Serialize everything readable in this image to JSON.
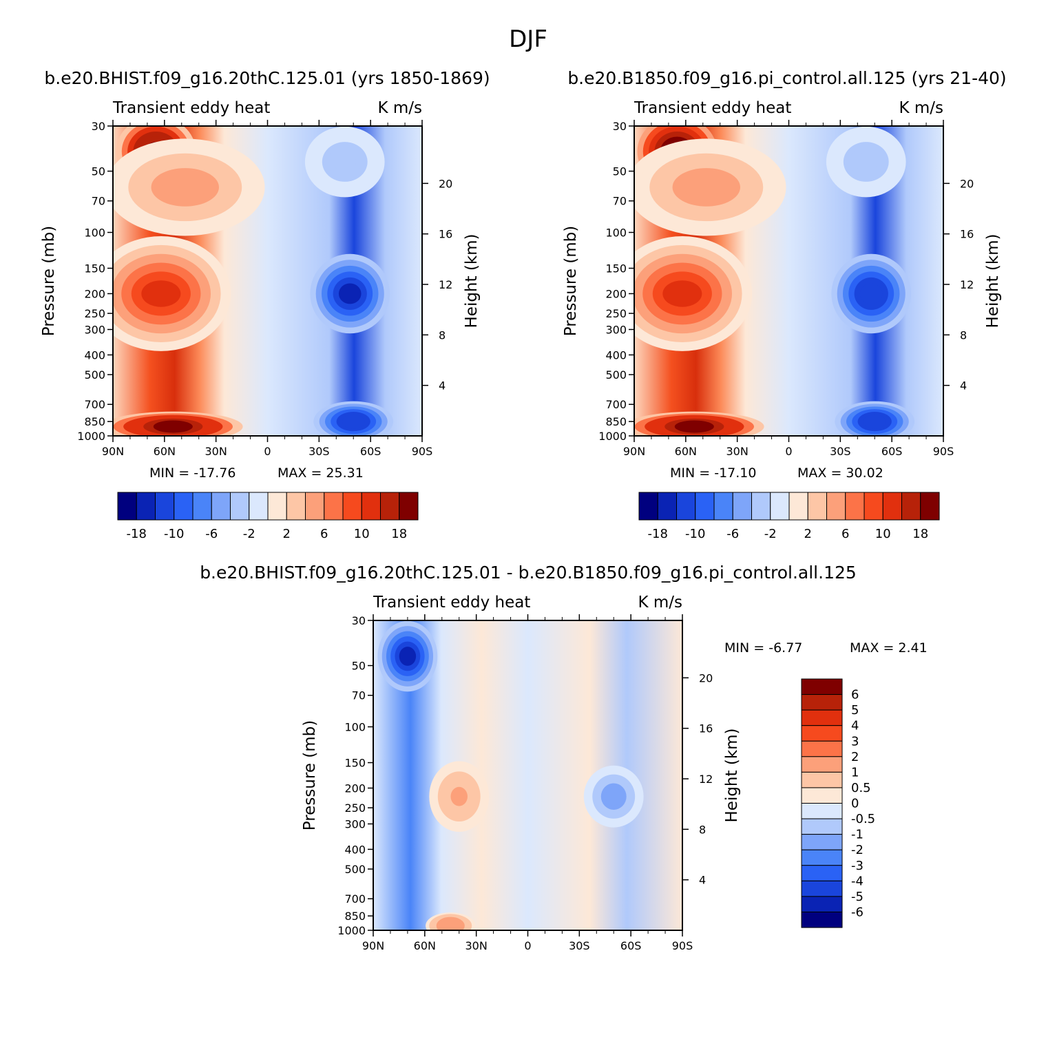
{
  "figure": {
    "title": "DJF",
    "colors": {
      "diverging": [
        "#00007f",
        "#0a23b4",
        "#1a45dc",
        "#2a62f5",
        "#4a84f8",
        "#7ea5f9",
        "#b0c9fb",
        "#dbe8fd",
        "#fde8d7",
        "#fdc6a6",
        "#fca07a",
        "#fc7348",
        "#f64a1e",
        "#e1300e",
        "#b72209",
        "#7f0000"
      ]
    },
    "diff_colors": [
      "#00007f",
      "#0a23b4",
      "#1a45dc",
      "#2a62f5",
      "#4a84f8",
      "#7ea5f9",
      "#b0c9fb",
      "#dbe8fd",
      "#fde8d7",
      "#fdc6a6",
      "#fca07a",
      "#fc7348",
      "#f64a1e",
      "#e1300e",
      "#b72209",
      "#7f0000"
    ]
  },
  "chart_data": [
    {
      "type": "heatmap",
      "id": "panel1",
      "title": "b.e20.BHIST.f09_g16.20thC.125.01 (yrs 1850-1869)",
      "left_string": "Transient eddy heat",
      "right_string": "K m/s",
      "xlabel": "",
      "ylabel": "Pressure (mb)",
      "ylabel_right": "Height (km)",
      "x_ticks": [
        "90N",
        "60N",
        "30N",
        "0",
        "30S",
        "60S",
        "90S"
      ],
      "x_range": [
        90,
        -90
      ],
      "y_ticks": [
        30,
        50,
        70,
        100,
        150,
        200,
        250,
        300,
        400,
        500,
        700,
        850,
        1000
      ],
      "y_range": [
        30,
        1000
      ],
      "height_ticks": [
        4,
        8,
        12,
        16,
        20
      ],
      "min_label": "MIN = -17.76",
      "max_label": "MAX = 25.31",
      "min": -17.76,
      "max": 25.31,
      "colorbar_labels": [
        "-18",
        "-10",
        "-6",
        "-2",
        "2",
        "6",
        "10",
        "18"
      ],
      "features": [
        {
          "lat": 65,
          "p": 40,
          "value": 25,
          "wlat": 8,
          "wlogp": 0.35
        },
        {
          "lat": 62,
          "p": 200,
          "value": 12,
          "wlat": 14,
          "wlogp": 0.6
        },
        {
          "lat": 55,
          "p": 900,
          "value": 24,
          "wlat": 14,
          "wlogp": 0.12
        },
        {
          "lat": 48,
          "p": 60,
          "value": 6,
          "wlat": 16,
          "wlogp": 0.5
        },
        {
          "lat": -48,
          "p": 200,
          "value": -17,
          "wlat": 8,
          "wlogp": 0.4
        },
        {
          "lat": -50,
          "p": 850,
          "value": -16,
          "wlat": 8,
          "wlogp": 0.18
        },
        {
          "lat": -45,
          "p": 45,
          "value": -4,
          "wlat": 8,
          "wlogp": 0.35
        }
      ]
    },
    {
      "type": "heatmap",
      "id": "panel2",
      "title": "b.e20.B1850.f09_g16.pi_control.all.125 (yrs 21-40)",
      "left_string": "Transient eddy heat",
      "right_string": "K m/s",
      "xlabel": "",
      "ylabel": "Pressure (mb)",
      "ylabel_right": "Height (km)",
      "x_ticks": [
        "90N",
        "60N",
        "30N",
        "0",
        "30S",
        "60S",
        "90S"
      ],
      "x_range": [
        90,
        -90
      ],
      "y_ticks": [
        30,
        50,
        70,
        100,
        150,
        200,
        250,
        300,
        400,
        500,
        700,
        850,
        1000
      ],
      "y_range": [
        30,
        1000
      ],
      "height_ticks": [
        4,
        8,
        12,
        16,
        20
      ],
      "min_label": "MIN = -17.10",
      "max_label": "MAX = 30.02",
      "min": -17.1,
      "max": 30.02,
      "colorbar_labels": [
        "-18",
        "-10",
        "-6",
        "-2",
        "2",
        "6",
        "10",
        "18"
      ],
      "features": [
        {
          "lat": 65,
          "p": 40,
          "value": 29,
          "wlat": 8,
          "wlogp": 0.35
        },
        {
          "lat": 62,
          "p": 200,
          "value": 12,
          "wlat": 14,
          "wlogp": 0.6
        },
        {
          "lat": 55,
          "p": 900,
          "value": 24,
          "wlat": 14,
          "wlogp": 0.12
        },
        {
          "lat": 48,
          "p": 60,
          "value": 6,
          "wlat": 16,
          "wlogp": 0.5
        },
        {
          "lat": -48,
          "p": 200,
          "value": -16,
          "wlat": 8,
          "wlogp": 0.4
        },
        {
          "lat": -50,
          "p": 850,
          "value": -16,
          "wlat": 8,
          "wlogp": 0.18
        },
        {
          "lat": -45,
          "p": 45,
          "value": -4,
          "wlat": 8,
          "wlogp": 0.35
        }
      ]
    },
    {
      "type": "heatmap",
      "id": "panel3",
      "title": "b.e20.BHIST.f09_g16.20thC.125.01 - b.e20.B1850.f09_g16.pi_control.all.125",
      "left_string": "Transient eddy heat",
      "right_string": "K m/s",
      "xlabel": "",
      "ylabel": "Pressure (mb)",
      "ylabel_right": "Height (km)",
      "x_ticks": [
        "90N",
        "60N",
        "30N",
        "0",
        "30S",
        "60S",
        "90S"
      ],
      "x_range": [
        90,
        -90
      ],
      "y_ticks": [
        30,
        50,
        70,
        100,
        150,
        200,
        250,
        300,
        400,
        500,
        700,
        850,
        1000
      ],
      "y_range": [
        30,
        1000
      ],
      "height_ticks": [
        4,
        8,
        12,
        16,
        20
      ],
      "min_label": "MIN = -6.77",
      "max_label": "MAX = 2.41",
      "min": -6.77,
      "max": 2.41,
      "colorbar_labels": [
        "6",
        "5",
        "4",
        "3",
        "2",
        "1",
        "0.5",
        "0",
        "-0.5",
        "-1",
        "-2",
        "-3",
        "-4",
        "-5",
        "-6"
      ],
      "features": [
        {
          "lat": 70,
          "p": 45,
          "value": -6.5,
          "wlat": 6,
          "wlogp": 0.35
        },
        {
          "lat": 40,
          "p": 220,
          "value": 1.2,
          "wlat": 6,
          "wlogp": 0.35
        },
        {
          "lat": 45,
          "p": 950,
          "value": 2.2,
          "wlat": 5,
          "wlogp": 0.1
        },
        {
          "lat": -50,
          "p": 220,
          "value": -1.5,
          "wlat": 6,
          "wlogp": 0.3
        }
      ]
    }
  ]
}
